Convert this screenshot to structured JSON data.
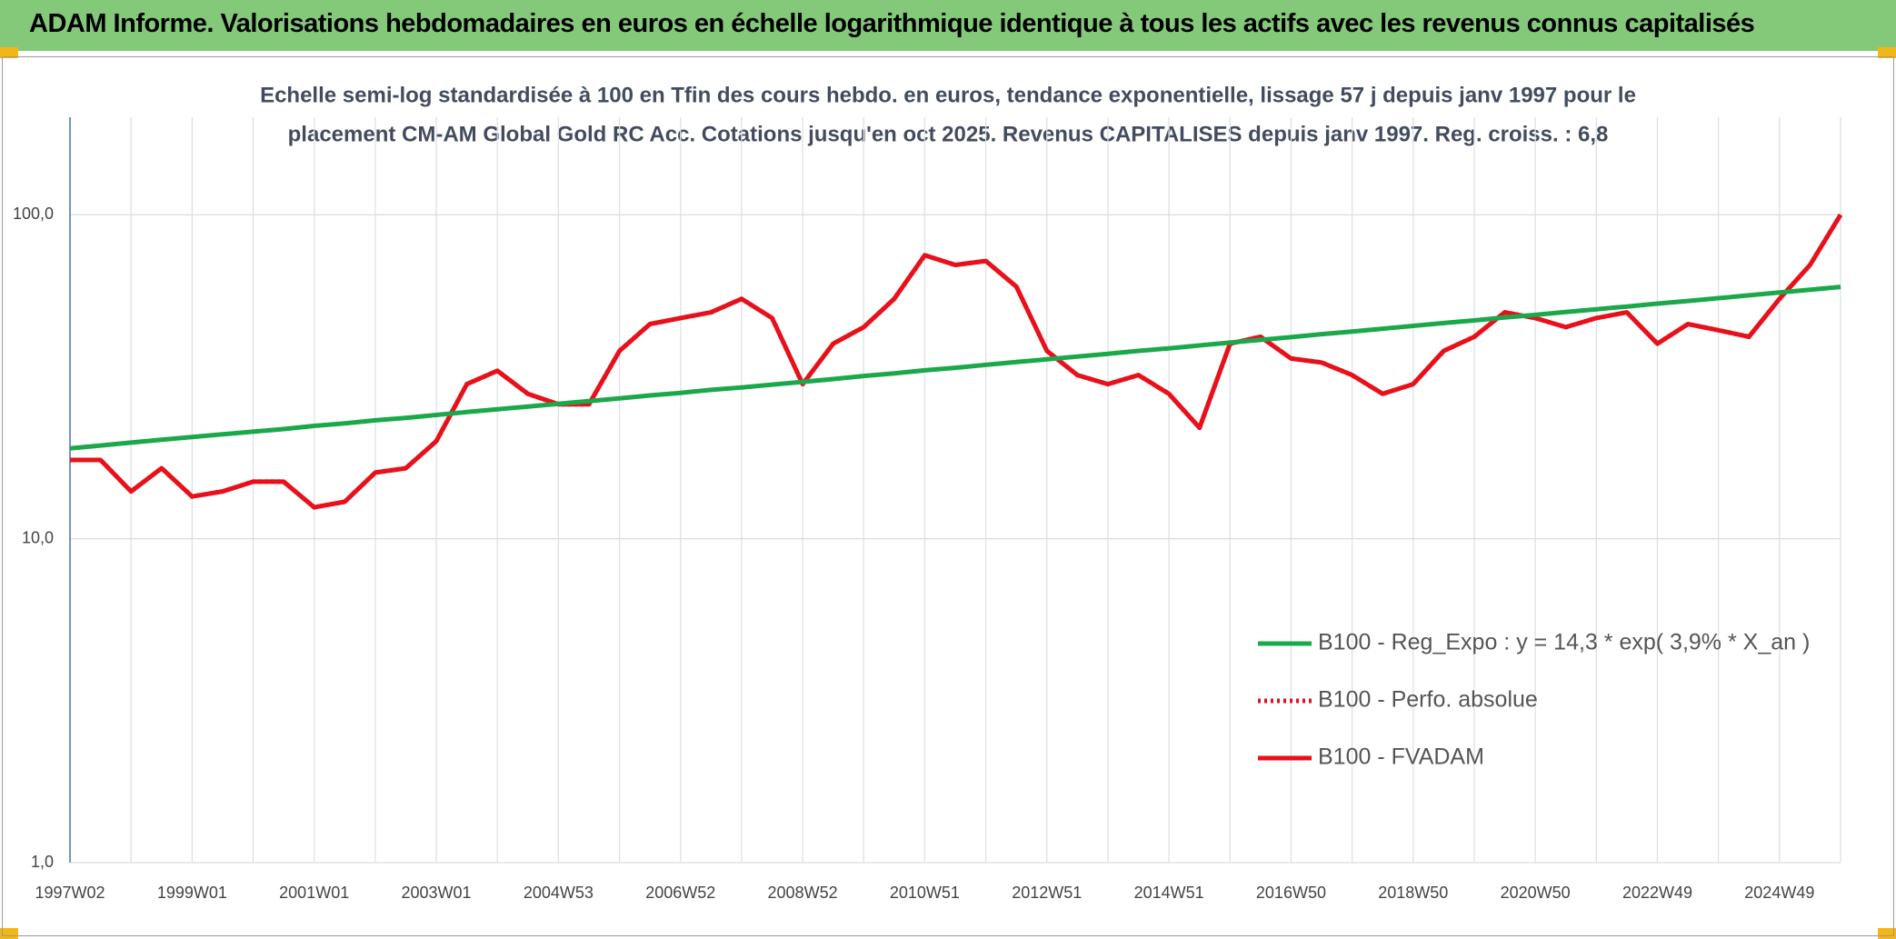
{
  "header": {
    "title": "ADAM Informe. Valorisations hebdomadaires en euros en échelle logarithmique identique à tous les actifs avec les revenus connus capitalisés"
  },
  "chart_data": {
    "type": "line",
    "subtitle": [
      "Echelle semi-log standardisée à 100 en Tfin des cours hebdo. en euros, tendance exponentielle, lissage 57 j depuis janv 1997 pour le",
      "placement CM-AM Global Gold RC Acc. Cotations jusqu'en oct 2025. Revenus CAPITALISES depuis janv 1997. Reg. croiss. : 6,8"
    ],
    "categories": [
      "1997W02",
      null,
      null,
      null,
      "1999W01",
      null,
      null,
      null,
      "2001W01",
      null,
      null,
      null,
      "2003W01",
      null,
      null,
      null,
      "2004W53",
      null,
      null,
      null,
      "2006W52",
      null,
      null,
      null,
      "2008W52",
      null,
      null,
      null,
      "2010W51",
      null,
      null,
      null,
      "2012W51",
      null,
      null,
      null,
      "2014W51",
      null,
      null,
      null,
      "2016W50",
      null,
      null,
      null,
      "2018W50",
      null,
      null,
      null,
      "2020W50",
      null,
      null,
      null,
      "2022W49",
      null,
      null,
      null,
      "2024W49",
      null,
      null
    ],
    "log_scale": true,
    "grid": true,
    "legend_position": "right",
    "ylim": [
      1,
      200
    ],
    "yticks": [
      {
        "value": 1,
        "label": "1,0"
      },
      {
        "value": 10,
        "label": "10,0"
      },
      {
        "value": 100,
        "label": "100,0"
      }
    ],
    "series": [
      {
        "name": "B100 - Reg_Expo : y = 14,3 * exp( 3,9% *  X_an )",
        "color": "#1aa84a",
        "style": "solid",
        "values": [
          19.0,
          19.4,
          19.8,
          20.2,
          20.6,
          21.0,
          21.4,
          21.8,
          22.3,
          22.7,
          23.2,
          23.6,
          24.1,
          24.6,
          25.1,
          25.6,
          26.1,
          26.6,
          27.1,
          27.7,
          28.2,
          28.8,
          29.3,
          29.9,
          30.5,
          31.1,
          31.8,
          32.4,
          33.1,
          33.7,
          34.4,
          35.1,
          35.8,
          36.5,
          37.2,
          38.0,
          38.7,
          39.5,
          40.3,
          41.1,
          41.9,
          42.8,
          43.6,
          44.5,
          45.4,
          46.3,
          47.2,
          48.2,
          49.1,
          50.1,
          51.1,
          52.1,
          53.2,
          54.2,
          55.3,
          56.4,
          57.6,
          58.7,
          59.9
        ]
      },
      {
        "name": "B100 - Perfo. absolue",
        "color": "#e8101a",
        "style": "dotted",
        "values": [
          17.5,
          17.5,
          14,
          16.5,
          13.5,
          14,
          15,
          15,
          12.5,
          13,
          16,
          16.5,
          20,
          30,
          33,
          28,
          26,
          26,
          38,
          46,
          48,
          50,
          55,
          48,
          30,
          40,
          45,
          55,
          75,
          70,
          72,
          60,
          38,
          32,
          30,
          32,
          28,
          22,
          40,
          42,
          36,
          35,
          32,
          28,
          30,
          38,
          42,
          50,
          48,
          45,
          48,
          50,
          40,
          46,
          44,
          42,
          55,
          70,
          100
        ]
      },
      {
        "name": "B100 - FVADAM",
        "color": "#e8101a",
        "style": "solid",
        "values": [
          17.5,
          17.5,
          14,
          16.5,
          13.5,
          14,
          15,
          15,
          12.5,
          13,
          16,
          16.5,
          20,
          30,
          33,
          28,
          26,
          26,
          38,
          46,
          48,
          50,
          55,
          48,
          30,
          40,
          45,
          55,
          75,
          70,
          72,
          60,
          38,
          32,
          30,
          32,
          28,
          22,
          40,
          42,
          36,
          35,
          32,
          28,
          30,
          38,
          42,
          50,
          48,
          45,
          48,
          50,
          40,
          46,
          44,
          42,
          55,
          70,
          100
        ]
      }
    ]
  }
}
